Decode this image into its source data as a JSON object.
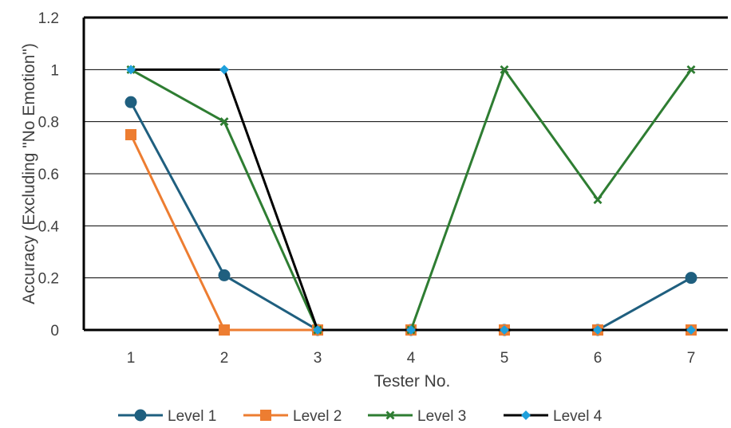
{
  "chart_data": {
    "type": "line",
    "title": "",
    "xlabel": "Tester No.",
    "ylabel": "Accuracy (Excluding \"No Emotion\")",
    "categories": [
      "1",
      "2",
      "3",
      "4",
      "5",
      "6",
      "7"
    ],
    "ylim": [
      0,
      1.2
    ],
    "yticks": [
      "0",
      "0.2",
      "0.4",
      "0.6",
      "0.8",
      "1",
      "1.2"
    ],
    "grid": true,
    "legend_position": "bottom",
    "series": [
      {
        "name": "Level 1",
        "color": "#1f5f7f",
        "marker": "circle",
        "values": [
          0.875,
          0.21,
          0,
          0,
          0,
          0,
          0.2
        ]
      },
      {
        "name": "Level 2",
        "color": "#ed7d31",
        "marker": "square",
        "values": [
          0.75,
          0,
          0,
          0,
          0,
          0,
          0
        ]
      },
      {
        "name": "Level 3",
        "color": "#2e7d32",
        "marker": "x",
        "values": [
          1,
          0.8,
          0,
          0,
          1,
          0.5,
          1
        ]
      },
      {
        "name": "Level 4",
        "color": "#000000",
        "marker": "diamond",
        "marker_color": "#1ea0dc",
        "values": [
          1,
          1,
          0,
          0,
          0,
          0,
          0
        ]
      }
    ]
  }
}
